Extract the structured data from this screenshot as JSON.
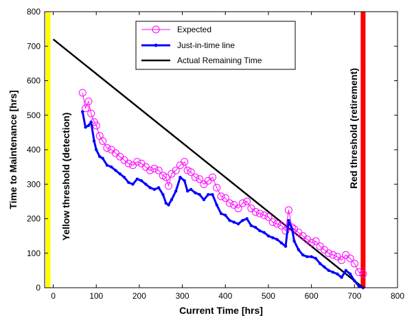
{
  "chart_data": {
    "type": "line",
    "xlabel": "Current Time [hrs]",
    "ylabel": "Time to Maintenance [hrs]",
    "xlim": [
      -20,
      800
    ],
    "ylim": [
      0,
      800
    ],
    "xticks": [
      0,
      100,
      200,
      300,
      400,
      500,
      600,
      700,
      800
    ],
    "yticks": [
      0,
      100,
      200,
      300,
      400,
      500,
      600,
      700,
      800
    ],
    "grid": false,
    "legend_position": "top-center",
    "thresholds": [
      {
        "label": "Yellow threshold (detection)",
        "x": -12,
        "color": "#ffff00"
      },
      {
        "label": "Red threshold (retirement)",
        "x": 720,
        "color": "#ff0000"
      }
    ],
    "series": [
      {
        "name": "Expected",
        "color": "#ff00ff",
        "marker": "circle",
        "x": [
          68,
          75,
          82,
          88,
          95,
          100,
          108,
          115,
          125,
          135,
          145,
          155,
          165,
          175,
          185,
          195,
          205,
          215,
          225,
          235,
          245,
          255,
          262,
          268,
          275,
          285,
          295,
          305,
          312,
          320,
          330,
          340,
          350,
          360,
          370,
          380,
          390,
          400,
          410,
          420,
          430,
          440,
          450,
          460,
          470,
          480,
          490,
          500,
          510,
          520,
          530,
          540,
          547,
          555,
          560,
          570,
          580,
          590,
          600,
          610,
          620,
          630,
          640,
          650,
          660,
          670,
          680,
          690,
          700,
          710,
          720
        ],
        "y": [
          565,
          520,
          540,
          505,
          480,
          470,
          440,
          425,
          405,
          400,
          390,
          380,
          370,
          360,
          355,
          365,
          360,
          350,
          340,
          345,
          340,
          325,
          320,
          295,
          330,
          340,
          355,
          365,
          340,
          335,
          320,
          315,
          300,
          310,
          320,
          290,
          265,
          260,
          245,
          240,
          230,
          245,
          250,
          230,
          220,
          215,
          210,
          205,
          190,
          185,
          180,
          165,
          225,
          175,
          170,
          160,
          150,
          140,
          130,
          135,
          120,
          110,
          100,
          95,
          90,
          80,
          95,
          85,
          70,
          45,
          40
        ]
      },
      {
        "name": "Just-in-time line",
        "color": "#0000ff",
        "marker": "dot",
        "x": [
          68,
          75,
          82,
          88,
          95,
          100,
          108,
          115,
          125,
          135,
          145,
          155,
          165,
          175,
          185,
          195,
          205,
          215,
          225,
          235,
          245,
          255,
          262,
          268,
          275,
          285,
          295,
          305,
          312,
          320,
          330,
          340,
          350,
          360,
          370,
          380,
          390,
          400,
          410,
          420,
          430,
          440,
          450,
          460,
          470,
          480,
          490,
          500,
          510,
          520,
          530,
          540,
          547,
          555,
          560,
          570,
          580,
          590,
          600,
          610,
          620,
          630,
          640,
          650,
          660,
          670,
          680,
          690,
          700,
          710,
          720
        ],
        "y": [
          510,
          465,
          470,
          480,
          425,
          400,
          380,
          375,
          355,
          350,
          340,
          330,
          320,
          305,
          300,
          315,
          310,
          300,
          290,
          285,
          290,
          270,
          245,
          240,
          255,
          280,
          320,
          310,
          280,
          285,
          275,
          270,
          255,
          270,
          270,
          240,
          215,
          210,
          195,
          190,
          185,
          195,
          200,
          180,
          175,
          165,
          160,
          150,
          145,
          140,
          130,
          120,
          195,
          170,
          135,
          110,
          95,
          90,
          90,
          85,
          70,
          60,
          50,
          45,
          40,
          30,
          50,
          40,
          20,
          5,
          0
        ]
      },
      {
        "name": "Actual Remaining Time",
        "color": "#000000",
        "marker": "none",
        "x": [
          0,
          720
        ],
        "y": [
          720,
          0
        ]
      }
    ]
  }
}
